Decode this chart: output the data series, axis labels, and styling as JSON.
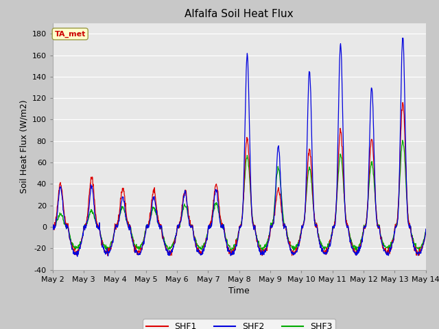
{
  "title": "Alfalfa Soil Heat Flux",
  "ylabel": "Soil Heat Flux (W/m2)",
  "xlabel": "Time",
  "ylim": [
    -40,
    190
  ],
  "yticks": [
    -40,
    -20,
    0,
    20,
    40,
    60,
    80,
    100,
    120,
    140,
    160,
    180
  ],
  "xtick_labels": [
    "May 2",
    "May 3",
    "May 4",
    "May 5",
    "May 6",
    "May 7",
    "May 8",
    "May 9",
    "May 10",
    "May 11",
    "May 12",
    "May 13",
    "May 14"
  ],
  "xtick_positions": [
    0,
    1,
    2,
    3,
    4,
    5,
    6,
    7,
    8,
    9,
    10,
    11,
    12
  ],
  "colors": {
    "SHF1": "#dd0000",
    "SHF2": "#0000dd",
    "SHF3": "#00aa00"
  },
  "legend_label": "TA_met",
  "plot_bg_color": "#e8e8e8",
  "grid_color": "white",
  "title_fontsize": 11,
  "axis_label_fontsize": 9,
  "tick_fontsize": 8,
  "shf1_amps": [
    40,
    46,
    35,
    33,
    33,
    40,
    82,
    35,
    72,
    90,
    82,
    115
  ],
  "shf2_amps": [
    38,
    38,
    28,
    28,
    33,
    35,
    161,
    75,
    145,
    170,
    130,
    176
  ],
  "shf3_amps": [
    12,
    15,
    18,
    18,
    20,
    22,
    65,
    55,
    55,
    67,
    60,
    80
  ],
  "night_shf1": -24,
  "night_shf2": -25,
  "night_shf3": -20
}
